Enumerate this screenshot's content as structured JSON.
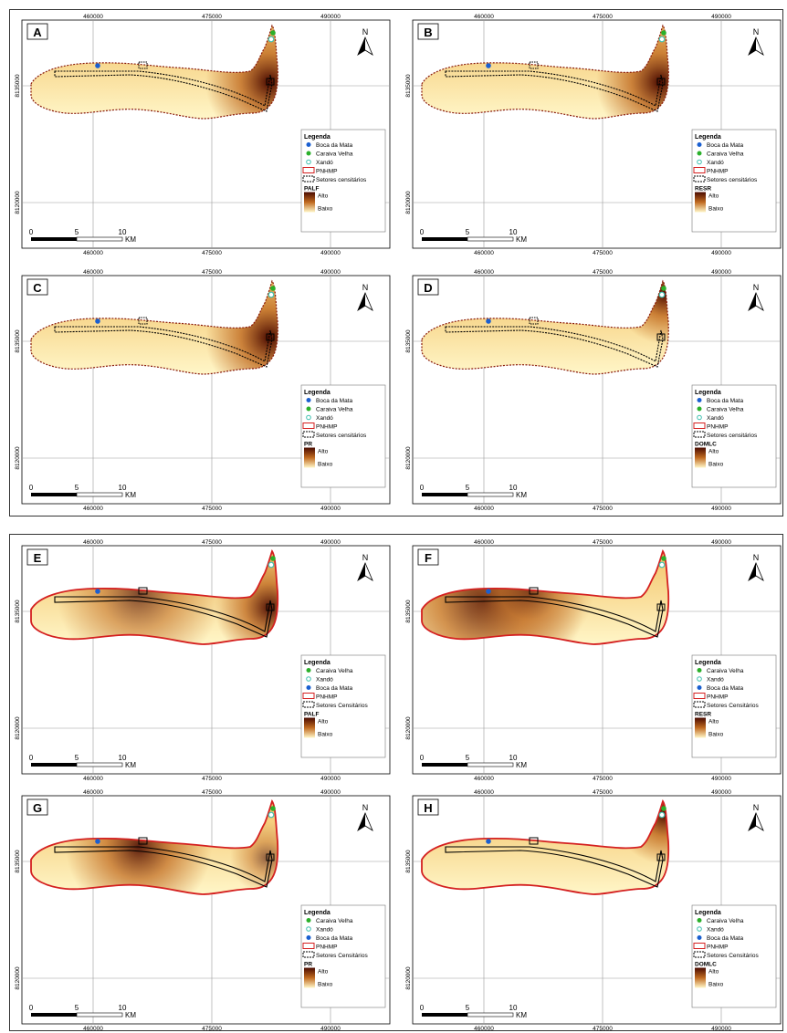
{
  "colors": {
    "ramp_high": "#4a0a00",
    "ramp_mid": "#c06a20",
    "ramp_low": "#fff6c8",
    "boundary_top": "#8a1a0a",
    "boundary_bottom": "#d42020",
    "boca_da_mata": "#1a5fd0",
    "caraiva_velha": "#2ab02a",
    "xando": "#40c0b0"
  },
  "axis": {
    "x_ticks": [
      "460000",
      "475000",
      "490000"
    ],
    "y_ticks": [
      "8135000",
      "8120000"
    ]
  },
  "scale_bar": {
    "labels": [
      "0",
      "5",
      "10"
    ],
    "unit": "KM"
  },
  "legend_title": "Legenda",
  "north_label": "N",
  "panels": [
    {
      "letter": "A",
      "variable": "PALF",
      "group": "top",
      "hotspot": "east",
      "legend_items": [
        {
          "label": "Boca da Mata",
          "symbol": "dot-blue"
        },
        {
          "label": "Caraiva Velha",
          "symbol": "dot-green"
        },
        {
          "label": "Xandó",
          "symbol": "dot-ring"
        },
        {
          "label": "PNHMP",
          "symbol": "rect-red"
        },
        {
          "label": "Setores censitários",
          "symbol": "rect-dash"
        }
      ],
      "ramp": {
        "high": "Alto",
        "low": "Baixo"
      }
    },
    {
      "letter": "B",
      "variable": "RESR",
      "group": "top",
      "hotspot": "east",
      "legend_items": [
        {
          "label": "Boca da Mata",
          "symbol": "dot-blue"
        },
        {
          "label": "Caraiva Velha",
          "symbol": "dot-green"
        },
        {
          "label": "Xandó",
          "symbol": "dot-ring"
        },
        {
          "label": "PNHMP",
          "symbol": "rect-red"
        },
        {
          "label": "Setores censitários",
          "symbol": "rect-dash"
        }
      ],
      "ramp": {
        "high": "Alto",
        "low": "Baixo"
      }
    },
    {
      "letter": "C",
      "variable": "PR",
      "group": "top",
      "hotspot": "east",
      "legend_items": [
        {
          "label": "Boca da Mata",
          "symbol": "dot-blue"
        },
        {
          "label": "Caraiva Velha",
          "symbol": "dot-green"
        },
        {
          "label": "Xandó",
          "symbol": "dot-ring"
        },
        {
          "label": "PNHMP",
          "symbol": "rect-red"
        },
        {
          "label": "Setores censitários",
          "symbol": "rect-dash"
        }
      ],
      "ramp": {
        "high": "Alto",
        "low": "Baixo"
      }
    },
    {
      "letter": "D",
      "variable": "DOMLC",
      "group": "top",
      "hotspot": "northeast",
      "legend_items": [
        {
          "label": "Boca da Mata",
          "symbol": "dot-blue"
        },
        {
          "label": "Caraiva Velha",
          "symbol": "dot-green"
        },
        {
          "label": "Xandó",
          "symbol": "dot-ring"
        },
        {
          "label": "PNHMP",
          "symbol": "rect-red"
        },
        {
          "label": "Setores censitários",
          "symbol": "rect-dash"
        }
      ],
      "ramp": {
        "high": "Alto",
        "low": "Baixo"
      }
    },
    {
      "letter": "E",
      "variable": "PALF",
      "group": "bottom",
      "hotspot": "central-east",
      "legend_items": [
        {
          "label": "Caraiva Velha",
          "symbol": "dot-green"
        },
        {
          "label": "Xandó",
          "symbol": "dot-ring"
        },
        {
          "label": "Boca da Mata",
          "symbol": "dot-blue"
        },
        {
          "label": "PNHMP",
          "symbol": "rect-red"
        },
        {
          "label": "Setores Censitários",
          "symbol": "rect-dash"
        }
      ],
      "ramp": {
        "high": "Alto",
        "low": "Baixo"
      }
    },
    {
      "letter": "F",
      "variable": "RESR",
      "group": "bottom",
      "hotspot": "west",
      "legend_items": [
        {
          "label": "Caraiva Velha",
          "symbol": "dot-green"
        },
        {
          "label": "Xandó",
          "symbol": "dot-ring"
        },
        {
          "label": "Boca da Mata",
          "symbol": "dot-blue"
        },
        {
          "label": "PNHMP",
          "symbol": "rect-red"
        },
        {
          "label": "Setores Censitários",
          "symbol": "rect-dash"
        }
      ],
      "ramp": {
        "high": "Alto",
        "low": "Baixo"
      }
    },
    {
      "letter": "G",
      "variable": "PR",
      "group": "bottom",
      "hotspot": "central",
      "legend_items": [
        {
          "label": "Caraiva Velha",
          "symbol": "dot-green"
        },
        {
          "label": "Xandó",
          "symbol": "dot-ring"
        },
        {
          "label": "Boca da Mata",
          "symbol": "dot-blue"
        },
        {
          "label": "PNHMP",
          "symbol": "rect-red"
        },
        {
          "label": "Setores Censitários",
          "symbol": "rect-dash"
        }
      ],
      "ramp": {
        "high": "Alto",
        "low": "Baixo"
      }
    },
    {
      "letter": "H",
      "variable": "DOMLC",
      "group": "bottom",
      "hotspot": "northeast",
      "legend_items": [
        {
          "label": "Caraiva Velha",
          "symbol": "dot-green"
        },
        {
          "label": "Xandó",
          "symbol": "dot-ring"
        },
        {
          "label": "Boca da Mata",
          "symbol": "dot-blue"
        },
        {
          "label": "PNHMP",
          "symbol": "rect-red"
        },
        {
          "label": "Setores Censitários",
          "symbol": "rect-dash"
        }
      ],
      "ramp": {
        "high": "Alto",
        "low": "Baixo"
      }
    }
  ]
}
